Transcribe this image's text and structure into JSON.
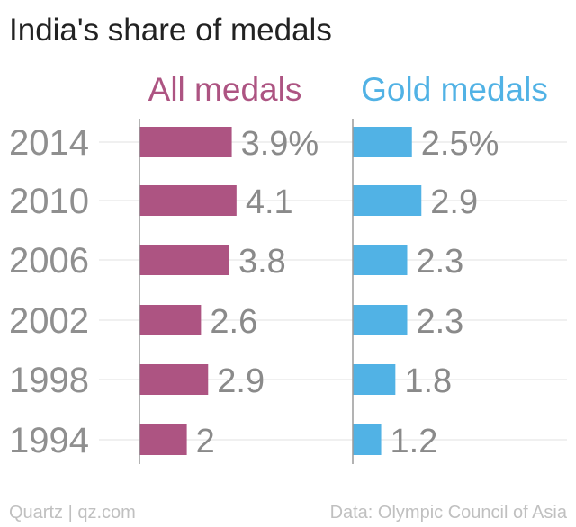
{
  "title": "India's share of medals",
  "footer": {
    "source_credit": "Quartz | qz.com",
    "data_credit": "Data: Olympic Council of Asia"
  },
  "colors": {
    "all_medals": "#AD5482",
    "gold_medals": "#51B2E5",
    "year_labels": "#8f8f8f",
    "value_labels": "#8a8a8a",
    "gridlines": "#ececec",
    "axis": "#9a9a9a"
  },
  "chart_data": {
    "type": "bar",
    "title": "India's share of medals",
    "categories": [
      "2014",
      "2010",
      "2006",
      "2002",
      "1998",
      "1994"
    ],
    "series": [
      {
        "name": "All medals",
        "values": [
          3.9,
          4.1,
          3.8,
          2.6,
          2.9,
          2
        ],
        "value_labels": [
          "3.9%",
          "4.1",
          "3.8",
          "2.6",
          "2.9",
          "2"
        ]
      },
      {
        "name": "Gold medals",
        "values": [
          2.5,
          2.9,
          2.3,
          2.3,
          1.8,
          1.2
        ],
        "value_labels": [
          "2.5%",
          "2.9",
          "2.3",
          "2.3",
          "1.8",
          "1.2"
        ]
      }
    ],
    "xlim": [
      0,
      4.1
    ],
    "grid": true,
    "orientation": "horizontal",
    "layout": "small-multiples"
  }
}
